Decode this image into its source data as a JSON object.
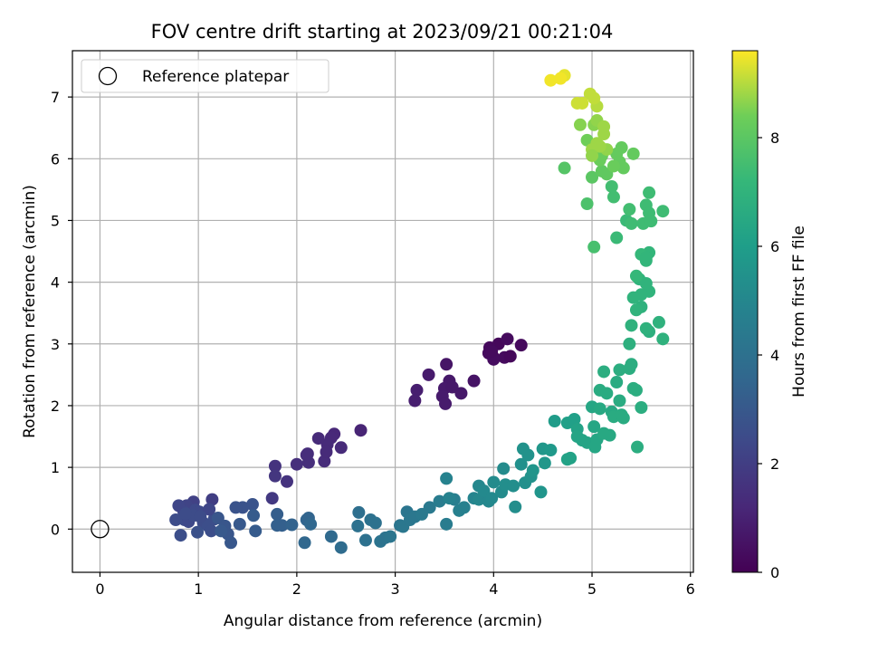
{
  "chart_data": {
    "type": "scatter",
    "title": "FOV centre drift starting at 2023/09/21 00:21:04",
    "xlabel": "Angular distance from reference (arcmin)",
    "ylabel": "Rotation from reference (arcmin)",
    "xlim": [
      -0.28,
      6.03
    ],
    "ylim": [
      -0.7,
      7.75
    ],
    "xticks": [
      0,
      1,
      2,
      3,
      4,
      5,
      6
    ],
    "yticks": [
      0,
      1,
      2,
      3,
      4,
      5,
      6,
      7
    ],
    "grid": true,
    "legend": {
      "position": "top-left",
      "entries": [
        "Reference platepar"
      ]
    },
    "reference": {
      "x": 0,
      "y": 0
    },
    "colorbar": {
      "label": "Hours from first FF file",
      "range": [
        0,
        9.6
      ],
      "ticks": [
        0,
        2,
        4,
        6,
        8
      ],
      "colormap": "viridis"
    },
    "points": [
      [
        4.0,
        2.78,
        0.2
      ],
      [
        4.11,
        2.78,
        0.3
      ],
      [
        4.17,
        2.8,
        0.2
      ],
      [
        3.95,
        2.85,
        0.3
      ],
      [
        4.05,
        3.0,
        0.2
      ],
      [
        4.14,
        3.08,
        0.3
      ],
      [
        3.96,
        2.94,
        0.25
      ],
      [
        4.28,
        2.98,
        0.25
      ],
      [
        4.0,
        2.75,
        0.35
      ],
      [
        3.98,
        2.88,
        0.3
      ],
      [
        3.8,
        2.4,
        0.55
      ],
      [
        3.52,
        2.67,
        0.6
      ],
      [
        3.55,
        2.4,
        0.7
      ],
      [
        3.5,
        2.28,
        0.75
      ],
      [
        3.48,
        2.15,
        0.8
      ],
      [
        3.51,
        2.03,
        0.8
      ],
      [
        3.58,
        2.3,
        0.7
      ],
      [
        3.67,
        2.2,
        0.7
      ],
      [
        3.34,
        2.5,
        0.8
      ],
      [
        3.22,
        2.25,
        0.9
      ],
      [
        3.2,
        2.08,
        0.9
      ],
      [
        2.65,
        1.6,
        1.1
      ],
      [
        2.38,
        1.54,
        1.2
      ],
      [
        2.35,
        1.48,
        1.25
      ],
      [
        2.45,
        1.32,
        1.3
      ],
      [
        2.31,
        1.37,
        1.3
      ],
      [
        2.22,
        1.47,
        1.3
      ],
      [
        2.11,
        1.22,
        1.35
      ],
      [
        2.28,
        1.1,
        1.35
      ],
      [
        2.12,
        1.08,
        1.4
      ],
      [
        2.0,
        1.05,
        1.45
      ],
      [
        2.1,
        1.2,
        1.4
      ],
      [
        2.3,
        1.25,
        1.3
      ],
      [
        1.9,
        0.77,
        1.6
      ],
      [
        1.78,
        1.02,
        1.6
      ],
      [
        1.78,
        0.86,
        1.7
      ],
      [
        1.75,
        0.5,
        1.8
      ],
      [
        1.14,
        0.48,
        2.0
      ],
      [
        0.95,
        0.44,
        2.1
      ],
      [
        0.88,
        0.38,
        2.2
      ],
      [
        0.85,
        0.29,
        2.3
      ],
      [
        0.8,
        0.38,
        2.3
      ],
      [
        0.97,
        0.31,
        2.4
      ],
      [
        0.92,
        0.2,
        2.4
      ],
      [
        0.86,
        0.15,
        2.5
      ],
      [
        1.05,
        0.1,
        2.5
      ],
      [
        1.1,
        0.05,
        2.6
      ],
      [
        1.13,
        -0.03,
        2.6
      ],
      [
        0.99,
        -0.05,
        2.7
      ],
      [
        1.16,
        0.16,
        2.6
      ],
      [
        0.82,
        -0.1,
        2.6
      ],
      [
        0.77,
        0.15,
        2.5
      ],
      [
        1.01,
        0.28,
        2.4
      ],
      [
        1.11,
        0.32,
        2.3
      ],
      [
        0.9,
        0.12,
        2.4
      ],
      [
        0.95,
        0.22,
        2.5
      ],
      [
        1.02,
        0.2,
        2.5
      ],
      [
        0.87,
        0.25,
        2.5
      ],
      [
        1.45,
        0.35,
        2.8
      ],
      [
        1.38,
        0.35,
        2.8
      ],
      [
        1.55,
        0.4,
        2.8
      ],
      [
        1.3,
        -0.08,
        2.9
      ],
      [
        1.2,
        0.18,
        2.9
      ],
      [
        1.27,
        0.05,
        2.9
      ],
      [
        1.33,
        -0.22,
        2.95
      ],
      [
        1.23,
        -0.03,
        3.0
      ],
      [
        1.42,
        0.08,
        3.0
      ],
      [
        1.56,
        0.22,
        3.1
      ],
      [
        1.58,
        -0.03,
        3.1
      ],
      [
        1.8,
        0.24,
        3.2
      ],
      [
        1.85,
        0.06,
        3.3
      ],
      [
        1.8,
        0.06,
        3.3
      ],
      [
        1.95,
        0.07,
        3.4
      ],
      [
        2.1,
        0.15,
        3.5
      ],
      [
        2.12,
        0.18,
        3.5
      ],
      [
        2.14,
        0.08,
        3.6
      ],
      [
        2.08,
        -0.22,
        3.6
      ],
      [
        2.35,
        -0.12,
        3.7
      ],
      [
        2.45,
        -0.3,
        3.8
      ],
      [
        2.63,
        0.27,
        3.9
      ],
      [
        2.75,
        0.15,
        4.0
      ],
      [
        2.7,
        -0.18,
        4.0
      ],
      [
        2.85,
        -0.2,
        4.1
      ],
      [
        2.62,
        0.05,
        4.0
      ],
      [
        2.8,
        0.1,
        4.0
      ],
      [
        2.9,
        -0.14,
        4.1
      ],
      [
        2.95,
        -0.12,
        4.2
      ],
      [
        3.05,
        0.06,
        4.2
      ],
      [
        3.12,
        0.28,
        4.2
      ],
      [
        3.08,
        0.04,
        4.3
      ],
      [
        3.15,
        0.15,
        4.3
      ],
      [
        3.2,
        0.2,
        4.3
      ],
      [
        3.27,
        0.24,
        4.4
      ],
      [
        3.35,
        0.35,
        4.4
      ],
      [
        3.45,
        0.45,
        4.5
      ],
      [
        3.52,
        0.08,
        4.5
      ],
      [
        3.6,
        0.48,
        4.6
      ],
      [
        3.65,
        0.3,
        4.7
      ],
      [
        3.7,
        0.35,
        4.7
      ],
      [
        3.52,
        0.82,
        4.8
      ],
      [
        3.55,
        0.5,
        4.8
      ],
      [
        3.8,
        0.5,
        4.9
      ],
      [
        3.85,
        0.7,
        5.0
      ],
      [
        3.85,
        0.48,
        5.0
      ],
      [
        3.95,
        0.45,
        5.0
      ],
      [
        3.9,
        0.62,
        5.1
      ],
      [
        3.98,
        0.5,
        5.1
      ],
      [
        4.0,
        0.76,
        5.2
      ],
      [
        4.08,
        0.6,
        5.2
      ],
      [
        4.1,
        0.98,
        5.2
      ],
      [
        4.12,
        0.72,
        5.3
      ],
      [
        4.2,
        0.7,
        5.3
      ],
      [
        4.22,
        0.36,
        5.3
      ],
      [
        4.28,
        1.05,
        5.4
      ],
      [
        4.32,
        0.75,
        5.4
      ],
      [
        4.3,
        1.3,
        5.5
      ],
      [
        4.35,
        1.2,
        5.5
      ],
      [
        4.38,
        0.85,
        5.5
      ],
      [
        4.4,
        0.95,
        5.6
      ],
      [
        4.48,
        0.6,
        5.6
      ],
      [
        4.52,
        1.07,
        5.7
      ],
      [
        4.5,
        1.3,
        5.7
      ],
      [
        4.58,
        1.28,
        5.8
      ],
      [
        4.62,
        1.75,
        5.9
      ],
      [
        4.75,
        1.72,
        6.1
      ],
      [
        4.82,
        1.78,
        6.1
      ],
      [
        4.85,
        1.62,
        6.2
      ],
      [
        4.78,
        1.15,
        6.2
      ],
      [
        4.75,
        1.13,
        6.2
      ],
      [
        4.85,
        1.5,
        6.3
      ],
      [
        4.9,
        1.44,
        6.3
      ],
      [
        4.95,
        1.4,
        6.3
      ],
      [
        5.03,
        1.33,
        6.4
      ],
      [
        5.05,
        1.45,
        6.4
      ],
      [
        5.02,
        1.66,
        6.4
      ],
      [
        5.0,
        1.98,
        6.4
      ],
      [
        5.08,
        1.95,
        6.5
      ],
      [
        5.12,
        1.55,
        6.5
      ],
      [
        5.18,
        1.52,
        6.5
      ],
      [
        5.2,
        1.9,
        6.5
      ],
      [
        5.08,
        2.25,
        6.6
      ],
      [
        5.15,
        2.2,
        6.6
      ],
      [
        5.28,
        2.08,
        6.6
      ],
      [
        5.25,
        2.38,
        6.6
      ],
      [
        5.22,
        1.82,
        6.6
      ],
      [
        5.3,
        1.85,
        6.6
      ],
      [
        5.32,
        1.8,
        6.6
      ],
      [
        5.12,
        2.55,
        6.7
      ],
      [
        5.28,
        2.58,
        6.7
      ],
      [
        5.38,
        2.6,
        6.7
      ],
      [
        5.4,
        2.67,
        6.7
      ],
      [
        5.42,
        2.28,
        6.7
      ],
      [
        5.45,
        2.25,
        6.7
      ],
      [
        5.5,
        1.97,
        6.7
      ],
      [
        5.46,
        1.33,
        6.7
      ],
      [
        5.38,
        3.0,
        6.8
      ],
      [
        5.58,
        3.2,
        6.8
      ],
      [
        5.55,
        3.25,
        6.9
      ],
      [
        5.68,
        3.35,
        6.9
      ],
      [
        5.72,
        3.08,
        6.9
      ],
      [
        5.4,
        3.3,
        6.9
      ],
      [
        5.5,
        3.6,
        6.9
      ],
      [
        5.58,
        3.85,
        7.0
      ],
      [
        5.5,
        3.8,
        7.0
      ],
      [
        5.55,
        3.98,
        7.0
      ],
      [
        5.48,
        4.05,
        7.0
      ],
      [
        5.42,
        3.75,
        7.0
      ],
      [
        5.45,
        3.55,
        7.0
      ],
      [
        5.55,
        4.35,
        7.1
      ],
      [
        5.58,
        4.48,
        7.1
      ],
      [
        5.5,
        4.45,
        7.2
      ],
      [
        5.45,
        4.1,
        7.2
      ],
      [
        5.55,
        4.4,
        7.1
      ],
      [
        5.25,
        4.72,
        7.3
      ],
      [
        5.35,
        5.0,
        7.3
      ],
      [
        5.4,
        4.95,
        7.4
      ],
      [
        5.52,
        4.95,
        7.4
      ],
      [
        5.55,
        5.25,
        7.4
      ],
      [
        5.58,
        5.45,
        7.4
      ],
      [
        5.58,
        5.12,
        7.4
      ],
      [
        5.72,
        5.15,
        7.4
      ],
      [
        5.6,
        4.99,
        7.4
      ],
      [
        5.38,
        5.18,
        7.5
      ],
      [
        5.2,
        5.55,
        7.5
      ],
      [
        5.22,
        5.38,
        7.5
      ],
      [
        5.02,
        4.57,
        7.6
      ],
      [
        4.95,
        5.27,
        7.7
      ],
      [
        4.72,
        5.85,
        7.9
      ],
      [
        5.0,
        5.7,
        8.0
      ],
      [
        5.1,
        5.8,
        8.1
      ],
      [
        5.15,
        5.75,
        8.1
      ],
      [
        5.25,
        6.08,
        8.2
      ],
      [
        5.28,
        5.95,
        8.2
      ],
      [
        5.3,
        6.18,
        8.2
      ],
      [
        5.32,
        5.85,
        8.2
      ],
      [
        5.42,
        6.08,
        8.2
      ],
      [
        5.22,
        5.88,
        8.3
      ],
      [
        5.1,
        6.05,
        8.3
      ],
      [
        5.08,
        5.98,
        8.3
      ],
      [
        4.95,
        6.3,
        8.4
      ],
      [
        5.02,
        6.55,
        8.6
      ],
      [
        4.88,
        6.55,
        8.6
      ],
      [
        5.05,
        6.62,
        8.7
      ],
      [
        5.15,
        6.15,
        8.7
      ],
      [
        5.05,
        6.25,
        8.8
      ],
      [
        5.12,
        6.4,
        8.8
      ],
      [
        5.08,
        6.2,
        8.8
      ],
      [
        5.0,
        6.15,
        8.8
      ],
      [
        5.12,
        6.52,
        8.8
      ],
      [
        5.0,
        6.05,
        8.7
      ],
      [
        5.05,
        6.85,
        9.0
      ],
      [
        4.98,
        7.05,
        9.1
      ],
      [
        5.02,
        6.98,
        9.1
      ],
      [
        4.85,
        6.9,
        9.2
      ],
      [
        4.9,
        6.9,
        9.2
      ],
      [
        4.72,
        7.35,
        9.4
      ],
      [
        4.68,
        7.3,
        9.5
      ],
      [
        4.58,
        7.27,
        9.5
      ]
    ]
  }
}
